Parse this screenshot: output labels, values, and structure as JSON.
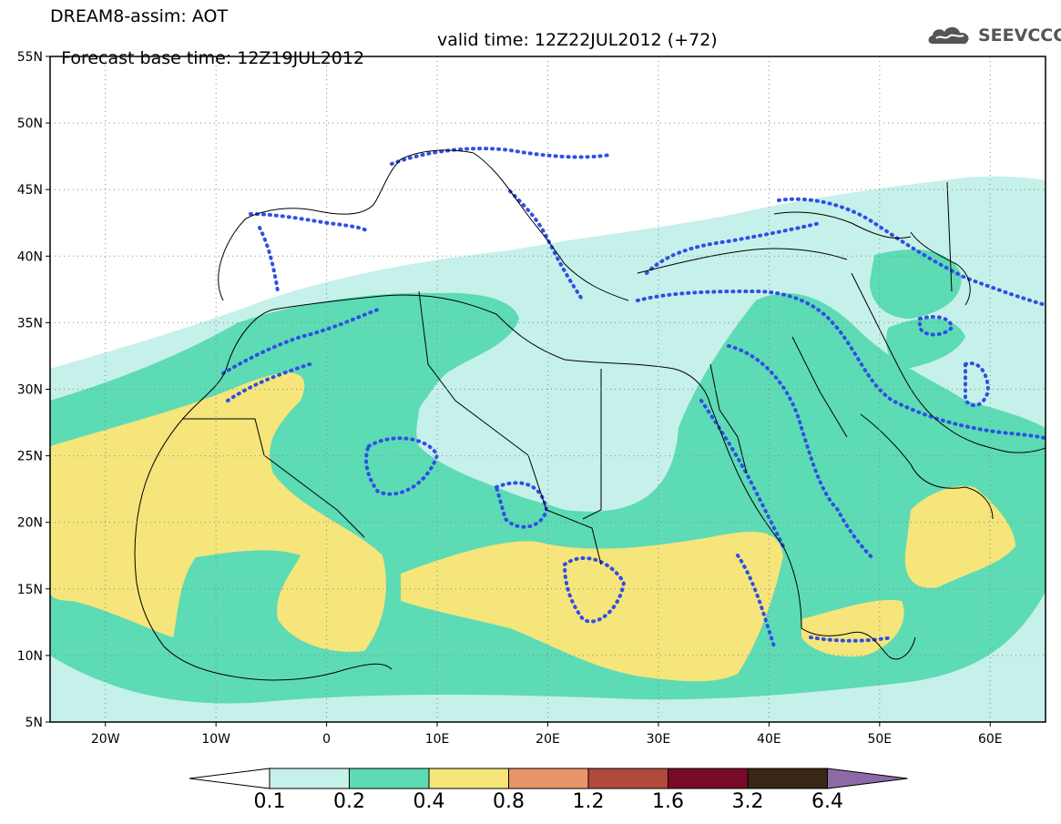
{
  "header": {
    "model_title": "DREAM8-assim: AOT",
    "base_time": "Forecast base time: 12Z19JUL2012",
    "valid_time": "valid time: 12Z22JUL2012 (+72)"
  },
  "logo": {
    "text": "SEEVCCC",
    "icon": "cloud-logo-icon"
  },
  "axes": {
    "lat_labels": [
      "55N",
      "50N",
      "45N",
      "40N",
      "35N",
      "30N",
      "25N",
      "20N",
      "15N",
      "10N",
      "5N"
    ],
    "lon_labels": [
      "20W",
      "10W",
      "0",
      "10E",
      "20E",
      "30E",
      "40E",
      "50E",
      "60E"
    ],
    "lon_range": [
      -25,
      65
    ],
    "lat_range": [
      5,
      55
    ],
    "grid": "dotted"
  },
  "colorbar": {
    "levels": [
      "0.1",
      "0.2",
      "0.4",
      "0.8",
      "1.2",
      "1.6",
      "3.2",
      "6.4"
    ],
    "colors": [
      "#ffffff",
      "#c6f0ea",
      "#5ddbb4",
      "#f5e57a",
      "#e8956a",
      "#b24a3c",
      "#7a0b28",
      "#3a2614",
      "#8c6aa8"
    ]
  },
  "overlay": {
    "contour_color": "#2f4fe6",
    "description_series": "AOT shading with dotted contour"
  }
}
